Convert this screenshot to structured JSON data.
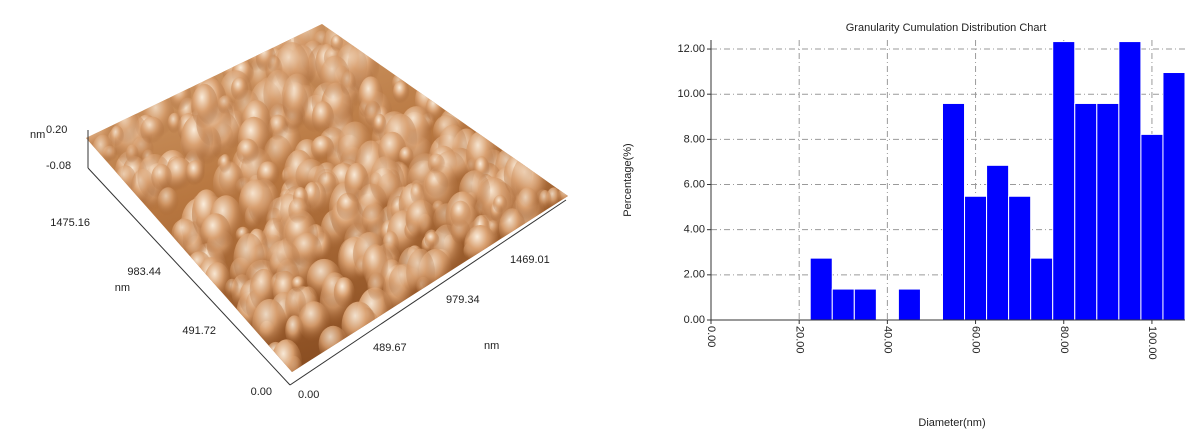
{
  "afm_image": {
    "z_unit": "nm",
    "z_ticks": [
      "0.20",
      "-0.08"
    ],
    "y_ticks": [
      "1475.16",
      "983.44",
      "491.72",
      "0.00"
    ],
    "y_unit": "nm",
    "x_ticks": [
      "0.00",
      "489.67",
      "979.34",
      "1469.01"
    ],
    "x_unit": "nm"
  },
  "chart_data": {
    "type": "histogram",
    "title": "Granularity Cumulation Distribution  Chart",
    "x_label": "Diameter(nm)",
    "y_label": "Percentage(%)",
    "color": "#0000ff",
    "grid": true,
    "bins": [
      22.5,
      27.5,
      32.5,
      37.5,
      42.5,
      47.5,
      52.5,
      57.5,
      62.5,
      67.5,
      72.5,
      77.5,
      82.5,
      87.5,
      92.5,
      97.5,
      102.5,
      107.5
    ],
    "values": [
      2.74,
      1.37,
      1.37,
      0,
      1.37,
      0,
      9.59,
      5.48,
      6.85,
      5.48,
      2.74,
      12.33,
      9.59,
      9.59,
      12.33,
      8.22,
      10.96
    ],
    "xlim": [
      0,
      107.5
    ],
    "ylim": [
      0,
      12.4
    ],
    "xticks": [
      {
        "value": 0,
        "label": "0.00"
      },
      {
        "value": 20,
        "label": "20.00"
      },
      {
        "value": 40,
        "label": "40.00"
      },
      {
        "value": 60,
        "label": "60.00"
      },
      {
        "value": 80,
        "label": "80.00"
      },
      {
        "value": 100,
        "label": "100.00"
      }
    ],
    "yticks": [
      {
        "value": 0,
        "label": "0.00"
      },
      {
        "value": 2,
        "label": "2.00"
      },
      {
        "value": 4,
        "label": "4.00"
      },
      {
        "value": 6,
        "label": "6.00"
      },
      {
        "value": 8,
        "label": "8.00"
      },
      {
        "value": 10,
        "label": "10.00"
      },
      {
        "value": 12,
        "label": "12.00"
      }
    ]
  }
}
